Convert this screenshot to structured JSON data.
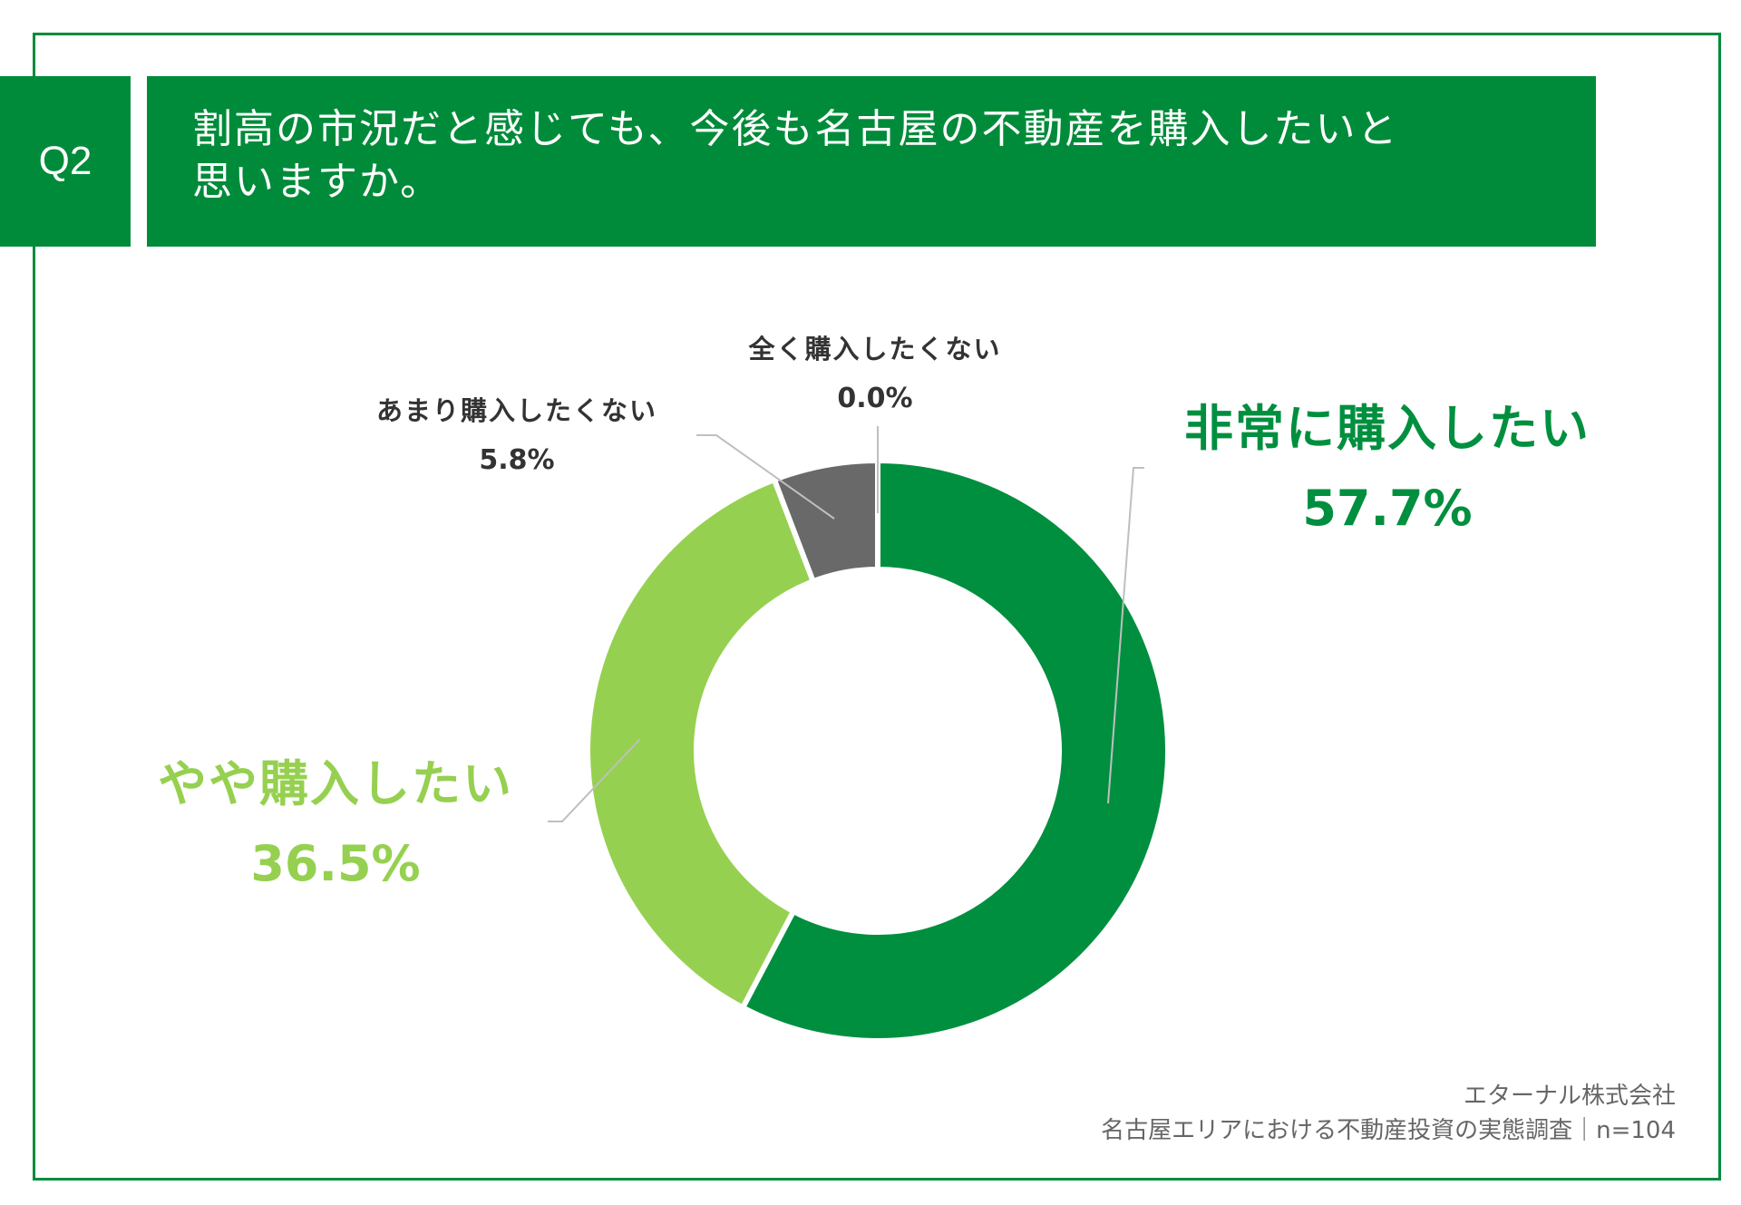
{
  "header": {
    "badge": "Q2",
    "question_line1": "割高の市況だと感じても、今後も名古屋の不動産を購入したいと",
    "question_line2": "思いますか。"
  },
  "chart_data": {
    "type": "pie",
    "variant": "donut",
    "categories": [
      "非常に購入したい",
      "やや購入したい",
      "あまり購入したくない",
      "全く購入したくない"
    ],
    "values": [
      57.7,
      36.5,
      5.8,
      0.0
    ],
    "value_labels": [
      "57.7%",
      "36.5%",
      "5.8%",
      "0.0%"
    ],
    "colors": [
      "#008f3f",
      "#96d050",
      "#696969",
      "#4a4a4a"
    ],
    "start": "12 o'clock",
    "direction": "clockwise",
    "legend": "none (callout labels)"
  },
  "colors": {
    "brand": "#008b3a",
    "strong": "#008f3f",
    "light": "#96d050",
    "gray": "#696969",
    "text_dark": "#333333",
    "footer_text": "#666666"
  },
  "footer": {
    "company": "エターナル株式会社",
    "survey": "名古屋エリアにおける不動産投資の実態調査｜n=104"
  }
}
